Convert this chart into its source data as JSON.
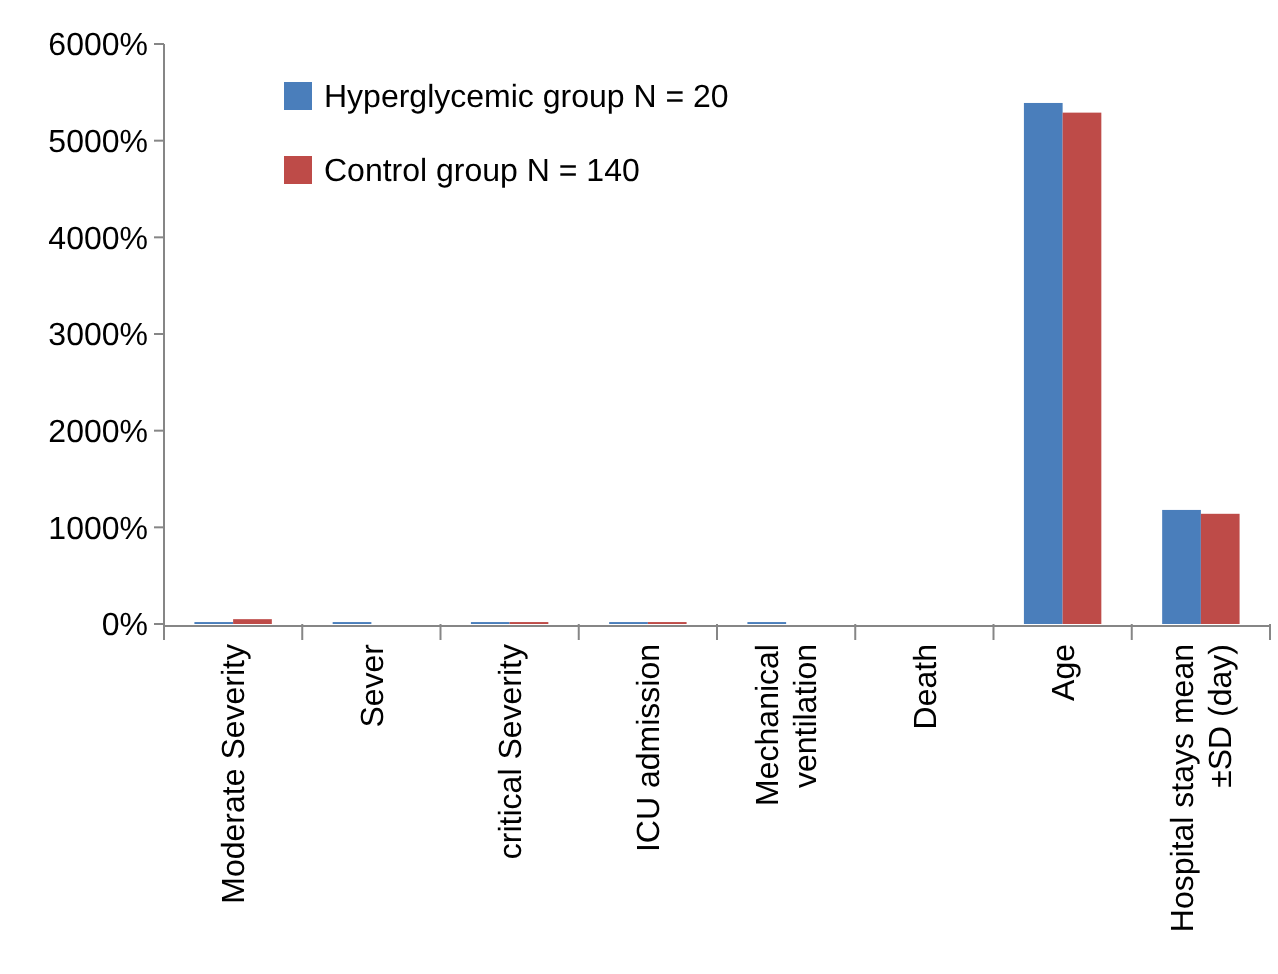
{
  "chart_data": {
    "type": "bar",
    "categories": [
      "Moderate Severity",
      "Sever",
      "critical Severity",
      "ICU admission",
      "Mechanical ventilation",
      "Death",
      "Age",
      "Hospital stays mean ±SD (day)"
    ],
    "series": [
      {
        "name": "Hyperglycemic group N = 20",
        "color": "#4a7ebb",
        "values": [
          20,
          20,
          20,
          20,
          20,
          0,
          5390,
          1180
        ]
      },
      {
        "name": "Control group N = 140",
        "color": "#be4b48",
        "values": [
          50,
          0,
          20,
          20,
          0,
          0,
          5290,
          1140
        ]
      }
    ],
    "ylim": [
      0,
      6000
    ],
    "yticks": [
      {
        "value": 0,
        "label": "0%"
      },
      {
        "value": 1000,
        "label": "1000%"
      },
      {
        "value": 2000,
        "label": "2000%"
      },
      {
        "value": 3000,
        "label": "3000%"
      },
      {
        "value": 4000,
        "label": "4000%"
      },
      {
        "value": 5000,
        "label": "5000%"
      },
      {
        "value": 6000,
        "label": "6000%"
      }
    ],
    "legend": "top left",
    "grid": false
  }
}
